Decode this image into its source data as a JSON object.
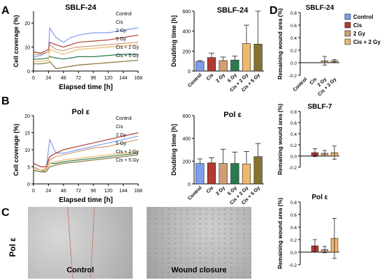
{
  "panel_letters": {
    "a": "A",
    "b": "B",
    "c": "C",
    "d": "D"
  },
  "micro": {
    "row_label": "Pol ε",
    "left_caption": "Control",
    "right_caption": "Wound closure"
  },
  "colors": {
    "Control": "#7e9cf0",
    "Cis": "#b23a32",
    "2 Gy": "#cf9e73",
    "5 Gy": "#2a7a4f",
    "Cis + 2 Gy": "#f0b86a",
    "Cis + 5 Gy": "#857230"
  },
  "chart_data": [
    {
      "id": "A-line",
      "type": "line",
      "title": "SBLF-24",
      "xlabel": "Elapsed time [h]",
      "ylabel": "Cell coverage (%)",
      "xlim": [
        0,
        168
      ],
      "ylim": [
        0,
        25
      ],
      "xticks": [
        0,
        24,
        48,
        72,
        96,
        120,
        144,
        168
      ],
      "yticks": [
        0,
        10,
        20
      ],
      "legend": "top-right",
      "x": [
        0,
        12,
        24,
        26,
        36,
        48,
        60,
        72,
        96,
        120,
        144,
        168
      ],
      "series": [
        {
          "name": "Control",
          "values": [
            6,
            6.5,
            8,
            18,
            14,
            12,
            14,
            15,
            16,
            16,
            17,
            18
          ]
        },
        {
          "name": "Cis",
          "values": [
            8,
            7.5,
            9,
            12,
            11,
            10,
            11,
            12,
            12.5,
            13,
            14,
            15
          ]
        },
        {
          "name": "2 Gy",
          "values": [
            7,
            7,
            8,
            11,
            9,
            8.5,
            9.5,
            10,
            10.5,
            11,
            11.5,
            12
          ]
        },
        {
          "name": "5 Gy",
          "values": [
            5,
            5,
            5.5,
            6,
            5.5,
            5,
            5.5,
            6,
            6,
            6.5,
            7,
            7
          ]
        },
        {
          "name": "Cis + 2 Gy",
          "values": [
            4,
            4,
            4.5,
            9,
            8,
            7,
            8,
            9,
            9.5,
            10,
            10.5,
            11
          ]
        },
        {
          "name": "Cis + 5 Gy",
          "values": [
            3,
            3,
            3.5,
            4,
            1,
            1.5,
            2,
            2.5,
            3,
            3.5,
            4,
            4.5
          ]
        }
      ]
    },
    {
      "id": "A-bar",
      "type": "bar",
      "title": "SBLF-24",
      "ylabel": "Doubling time [h]",
      "categories": [
        "Control",
        "Cis",
        "2 Gy",
        "5 Gy",
        "Cis + 2 Gy",
        "Cis + 5 Gy"
      ],
      "values": [
        95,
        135,
        105,
        110,
        275,
        270
      ],
      "errors": [
        10,
        45,
        35,
        40,
        185,
        360
      ],
      "ylim": [
        0,
        600
      ],
      "yticks": [
        0,
        200,
        400,
        600
      ]
    },
    {
      "id": "B-line",
      "type": "line",
      "title": "Pol ε",
      "xlabel": "Elapsed time [h]",
      "ylabel": "Cell coverage (%)",
      "xlim": [
        0,
        168
      ],
      "ylim": [
        0,
        20
      ],
      "xticks": [
        0,
        24,
        48,
        72,
        96,
        120,
        144,
        168
      ],
      "yticks": [
        0,
        5,
        10,
        15,
        20
      ],
      "legend": "top-right",
      "x": [
        0,
        12,
        20,
        26,
        36,
        48,
        72,
        96,
        120,
        144,
        168
      ],
      "series": [
        {
          "name": "Control",
          "values": [
            5,
            4,
            4,
            13,
            9,
            9,
            10,
            11,
            12,
            13,
            14
          ]
        },
        {
          "name": "Cis",
          "values": [
            6,
            5,
            5,
            8,
            9,
            10,
            11,
            12,
            13,
            14,
            15
          ]
        },
        {
          "name": "2 Gy",
          "values": [
            5,
            4,
            4.5,
            7,
            8,
            8.5,
            9.5,
            10.5,
            11,
            12,
            13
          ]
        },
        {
          "name": "5 Gy",
          "values": [
            4,
            3.5,
            4,
            6,
            6,
            6.5,
            7,
            7.5,
            8,
            8.5,
            9
          ]
        },
        {
          "name": "Cis + 2 Gy",
          "values": [
            4.5,
            4,
            4,
            6,
            6.5,
            7,
            7.5,
            8,
            8.5,
            9,
            9.5
          ]
        },
        {
          "name": "Cis + 5 Gy",
          "values": [
            4,
            3.5,
            3.5,
            5,
            5.5,
            6,
            6.5,
            7,
            7.5,
            8,
            8.5
          ]
        }
      ]
    },
    {
      "id": "B-bar",
      "type": "bar",
      "title": "Pol ε",
      "ylabel": "Doubling time [h]",
      "categories": [
        "Control",
        "Cis",
        "2 Gy",
        "5 Gy",
        "Cis + 2 Gy",
        "Cis + 5 Gy"
      ],
      "values": [
        180,
        185,
        180,
        180,
        175,
        240
      ],
      "errors": [
        40,
        45,
        125,
        100,
        110,
        115
      ],
      "ylim": [
        0,
        600
      ],
      "yticks": [
        0,
        200,
        400,
        600
      ]
    },
    {
      "id": "D1",
      "type": "bar",
      "title": "SBLF-24",
      "ylabel": "Remaining wound area (%)",
      "categories": [
        "Control",
        "Cis",
        "2 Gy",
        "Cis + 2 Gy"
      ],
      "values": [
        0,
        0,
        0.03,
        0.03
      ],
      "errors": [
        0,
        0,
        0.07,
        0.02
      ],
      "ylim": [
        -0.2,
        0.8
      ],
      "yticks": [
        -0.2,
        0.0,
        0.2,
        0.4,
        0.6,
        0.8
      ],
      "legend": "right",
      "legend_entries": [
        "Control",
        "Cis",
        "2 Gy",
        "Cis + 2 Gy"
      ]
    },
    {
      "id": "D2",
      "type": "bar",
      "title": "SBLF-7",
      "ylabel": "Remaining wound area (%)",
      "categories": [
        "Control",
        "Cis",
        "2 Gy",
        "Cis + 2 Gy"
      ],
      "values": [
        0,
        0.06,
        0.05,
        0.06
      ],
      "errors": [
        0,
        0.07,
        0.05,
        0.12
      ],
      "ylim": [
        -0.2,
        0.8
      ],
      "yticks": [
        -0.2,
        0.0,
        0.2,
        0.4,
        0.6,
        0.8
      ]
    },
    {
      "id": "D3",
      "type": "bar",
      "title": "Pol ε",
      "ylabel": "Remaining wound area (%)",
      "categories": [
        "Control",
        "Cis",
        "2 Gy",
        "Cis + 2 Gy"
      ],
      "values": [
        0,
        0.1,
        0.04,
        0.22
      ],
      "errors": [
        0,
        0.1,
        0.05,
        0.32
      ],
      "ylim": [
        -0.2,
        0.8
      ],
      "yticks": [
        -0.2,
        0.0,
        0.2,
        0.4,
        0.6,
        0.8
      ]
    }
  ]
}
